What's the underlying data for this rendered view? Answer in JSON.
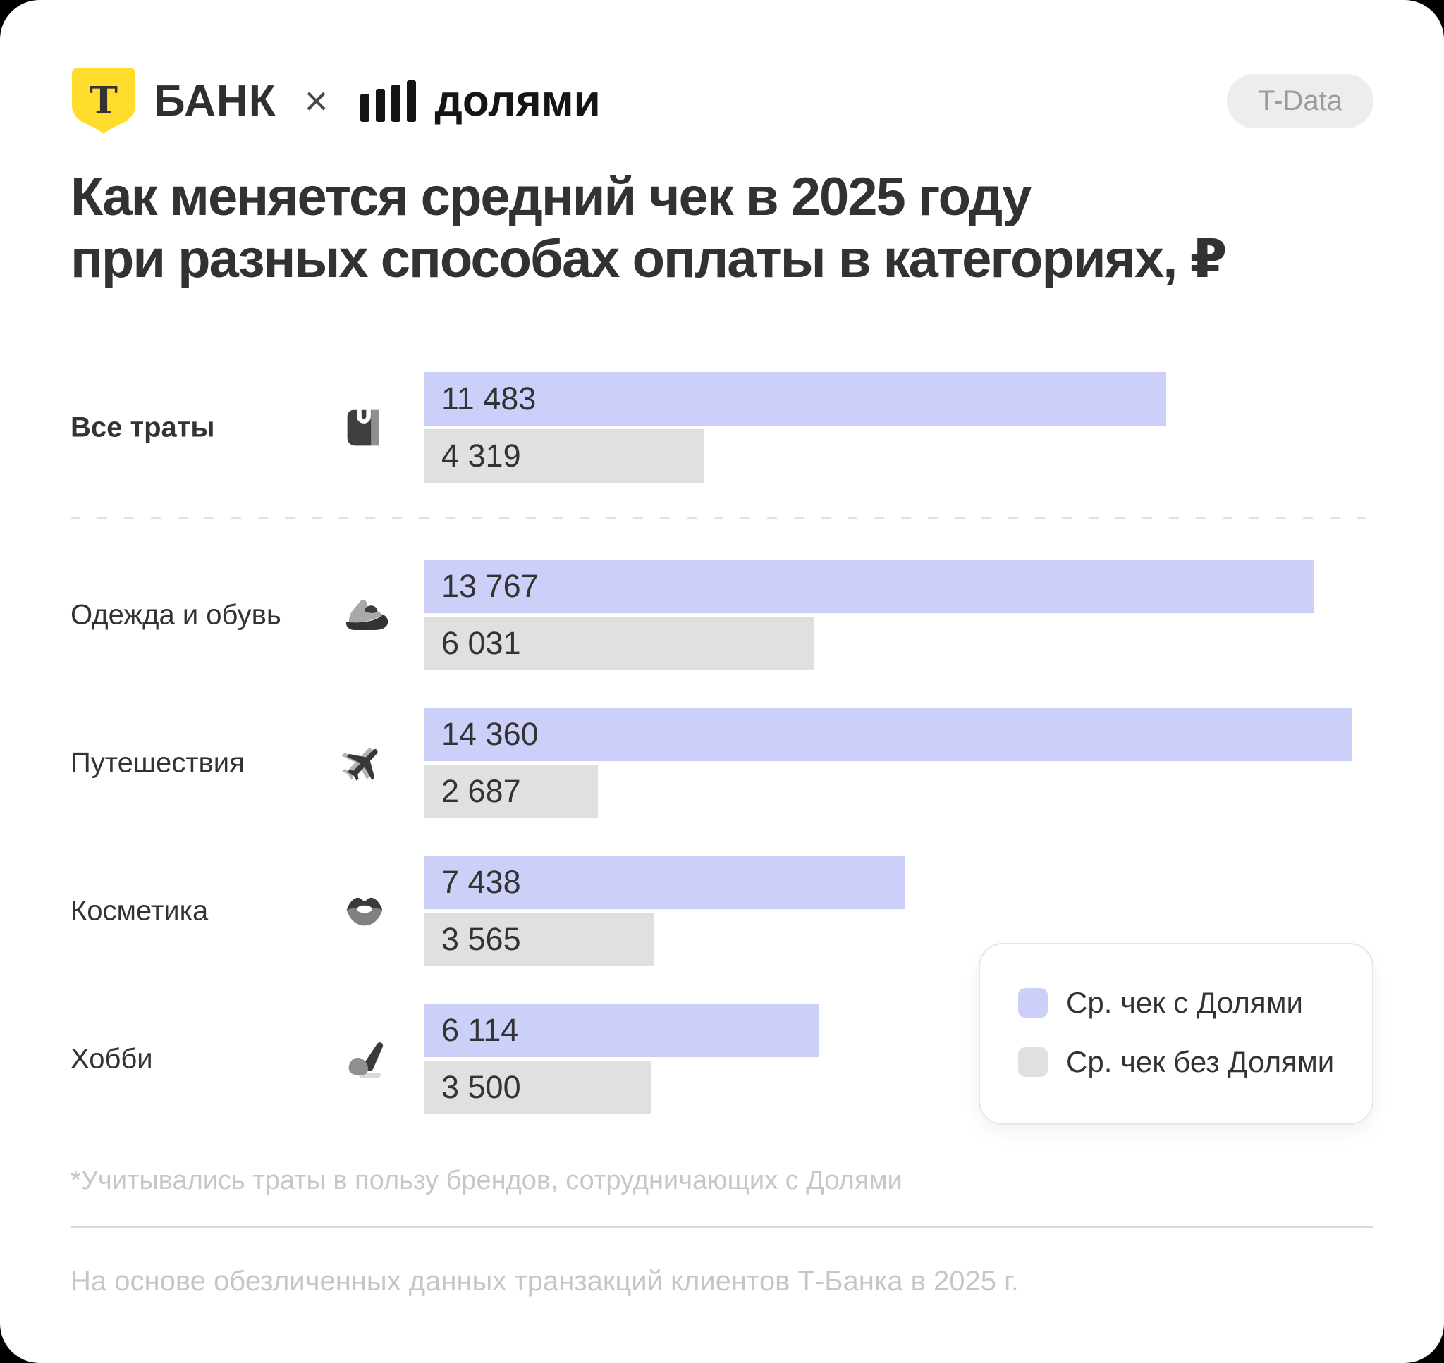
{
  "header": {
    "bank_name": "БАНК",
    "separator": "×",
    "partner_name": "долями",
    "badge": "T-Data"
  },
  "title": {
    "line1": "Как меняется средний чек в 2025 году",
    "line2": "при разных способах оплаты в категориях, ₽"
  },
  "chart_data": {
    "type": "bar",
    "orientation": "horizontal",
    "currency_unit": "₽",
    "title": "Как меняется средний чек в 2025 году при разных способах оплаты в категориях, ₽",
    "categories": [
      "Все траты",
      "Одежда и обувь",
      "Путешествия",
      "Косметика",
      "Хобби"
    ],
    "category_icons": [
      "wallet-icon",
      "sneaker-icon",
      "airplane-icon",
      "lips-icon",
      "paintbrush-icon"
    ],
    "series": [
      {
        "name": "Ср. чек с Долями",
        "color": "#cccff7",
        "values": [
          11483,
          13767,
          14360,
          7438,
          6114
        ],
        "labels": [
          "11 483",
          "13 767",
          "14 360",
          "7 438",
          "6 114"
        ]
      },
      {
        "name": "Ср. чек без Долями",
        "color": "#e0e0e0",
        "values": [
          4319,
          6031,
          2687,
          3565,
          3500
        ],
        "labels": [
          "4 319",
          "6 031",
          "2 687",
          "3 565",
          "3 500"
        ]
      }
    ],
    "value_axis": {
      "min": 0,
      "max": 14360,
      "axis_visible": false,
      "grid": false
    },
    "value_labels_inside_bars": true,
    "legend_position": "bottom-right",
    "first_category_emphasized": true
  },
  "footnote": "*Учитывались траты в пользу брендов, сотрудничающих с Долями",
  "source": "На основе обезличенных данных транзакций клиентов Т-Банка в 2025 г.",
  "colors": {
    "bar_with_dolyami": "#cccff7",
    "bar_without_dolyami": "#e0e0e0",
    "brand_yellow": "#ffdd2d",
    "text_dark": "#333333",
    "muted_text": "#c7c7c7"
  }
}
